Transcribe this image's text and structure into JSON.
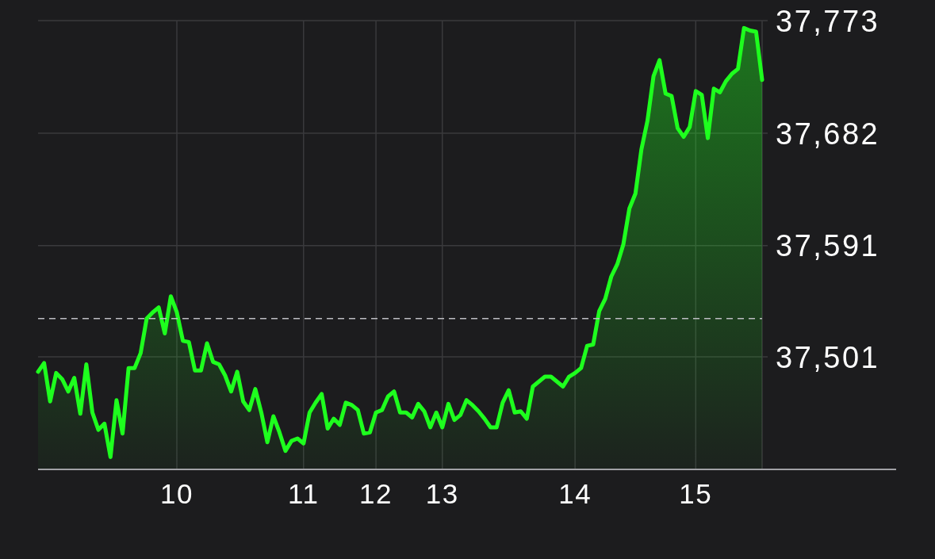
{
  "chart_data": {
    "type": "area",
    "categories": [
      null,
      null,
      null,
      null,
      null,
      null,
      null,
      null,
      null,
      null,
      null,
      null,
      null,
      null,
      null,
      null,
      null,
      null,
      null,
      null,
      null,
      null,
      null,
      "10",
      null,
      null,
      null,
      null,
      null,
      null,
      null,
      null,
      null,
      null,
      null,
      null,
      null,
      null,
      null,
      null,
      null,
      null,
      null,
      null,
      "11",
      null,
      null,
      null,
      null,
      null,
      null,
      null,
      null,
      null,
      null,
      null,
      "12",
      null,
      null,
      null,
      null,
      null,
      null,
      null,
      null,
      null,
      null,
      "13",
      null,
      null,
      null,
      null,
      null,
      null,
      null,
      null,
      null,
      null,
      null,
      null,
      null,
      null,
      null,
      null,
      null,
      null,
      null,
      null,
      null,
      "14",
      null,
      null,
      null,
      null,
      null,
      null,
      null,
      null,
      null,
      null,
      null,
      null,
      null,
      null,
      null,
      null,
      null,
      null,
      null,
      "15",
      null,
      null,
      null,
      null,
      null,
      null,
      null,
      null,
      null,
      null,
      null
    ],
    "values": [
      37489,
      37496,
      37465,
      37488,
      37483,
      37473,
      37484,
      37455,
      37495,
      37456,
      37442,
      37447,
      37420,
      37466,
      37439,
      37492,
      37492,
      37504,
      37532,
      37537,
      37541,
      37520,
      37550,
      37537,
      37514,
      37513,
      37490,
      37490,
      37512,
      37497,
      37495,
      37486,
      37473,
      37489,
      37465,
      37458,
      37475,
      37456,
      37432,
      37453,
      37440,
      37425,
      37433,
      37435,
      37431,
      37456,
      37464,
      37471,
      37443,
      37451,
      37446,
      37464,
      37462,
      37458,
      37439,
      37440,
      37456,
      37458,
      37469,
      37473,
      37456,
      37456,
      37452,
      37463,
      37457,
      37444,
      37456,
      37444,
      37463,
      37450,
      37454,
      37466,
      37462,
      37457,
      37451,
      37444,
      37444,
      37464,
      37474,
      37456,
      37457,
      37451,
      37477,
      37481,
      37485,
      37485,
      37481,
      37477,
      37485,
      37488,
      37492,
      37510,
      37511,
      37538,
      37548,
      37566,
      37576,
      37592,
      37621,
      37633,
      37669,
      37692,
      37728,
      37741,
      37714,
      37712,
      37686,
      37679,
      37687,
      37716,
      37713,
      37678,
      37718,
      37715,
      37724,
      37730,
      37734,
      37767,
      37765,
      37764,
      37725
    ],
    "color": "#1eff1e",
    "ylim": [
      37410,
      37773
    ],
    "yticks": [
      {
        "value": 37501,
        "label": "37,501"
      },
      {
        "value": 37591,
        "label": "37,591"
      },
      {
        "value": 37682,
        "label": "37,682"
      },
      {
        "value": 37773,
        "label": "37,773"
      }
    ],
    "grid": true,
    "line_style": "solid",
    "ref_lines": [
      {
        "axis": "y",
        "value": 37532,
        "line_style": "dashed",
        "color": "#bdbdc2"
      }
    ]
  }
}
